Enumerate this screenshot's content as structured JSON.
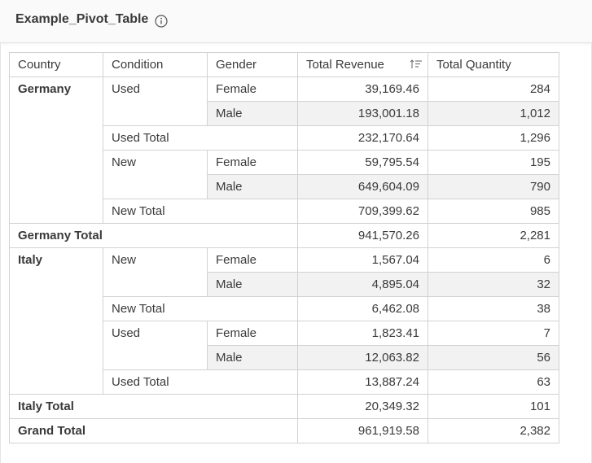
{
  "title": "Example_Pivot_Table",
  "columns": [
    "Country",
    "Condition",
    "Gender",
    "Total Revenue",
    "Total Quantity"
  ],
  "rows": {
    "de_used_female": {
      "country": "Germany",
      "condition": "Used",
      "gender": "Female",
      "revenue": "39,169.46",
      "quantity": "284"
    },
    "de_used_male": {
      "gender": "Male",
      "revenue": "193,001.18",
      "quantity": "1,012"
    },
    "de_used_total": {
      "label": "Used Total",
      "revenue": "232,170.64",
      "quantity": "1,296"
    },
    "de_new_female": {
      "condition": "New",
      "gender": "Female",
      "revenue": "59,795.54",
      "quantity": "195"
    },
    "de_new_male": {
      "gender": "Male",
      "revenue": "649,604.09",
      "quantity": "790"
    },
    "de_new_total": {
      "label": "New Total",
      "revenue": "709,399.62",
      "quantity": "985"
    },
    "de_total": {
      "label": "Germany Total",
      "revenue": "941,570.26",
      "quantity": "2,281"
    },
    "it_new_female": {
      "country": "Italy",
      "condition": "New",
      "gender": "Female",
      "revenue": "1,567.04",
      "quantity": "6"
    },
    "it_new_male": {
      "gender": "Male",
      "revenue": "4,895.04",
      "quantity": "32"
    },
    "it_new_total": {
      "label": "New Total",
      "revenue": "6,462.08",
      "quantity": "38"
    },
    "it_used_female": {
      "condition": "Used",
      "gender": "Female",
      "revenue": "1,823.41",
      "quantity": "7"
    },
    "it_used_male": {
      "gender": "Male",
      "revenue": "12,063.82",
      "quantity": "56"
    },
    "it_used_total": {
      "label": "Used Total",
      "revenue": "13,887.24",
      "quantity": "63"
    },
    "it_total": {
      "label": "Italy Total",
      "revenue": "20,349.32",
      "quantity": "101"
    },
    "grand_total": {
      "label": "Grand Total",
      "revenue": "961,919.58",
      "quantity": "2,382"
    }
  },
  "colors": {
    "border": "#d2d2d2",
    "alt_row": "#f2f2f2",
    "text": "#3a3a3a"
  }
}
